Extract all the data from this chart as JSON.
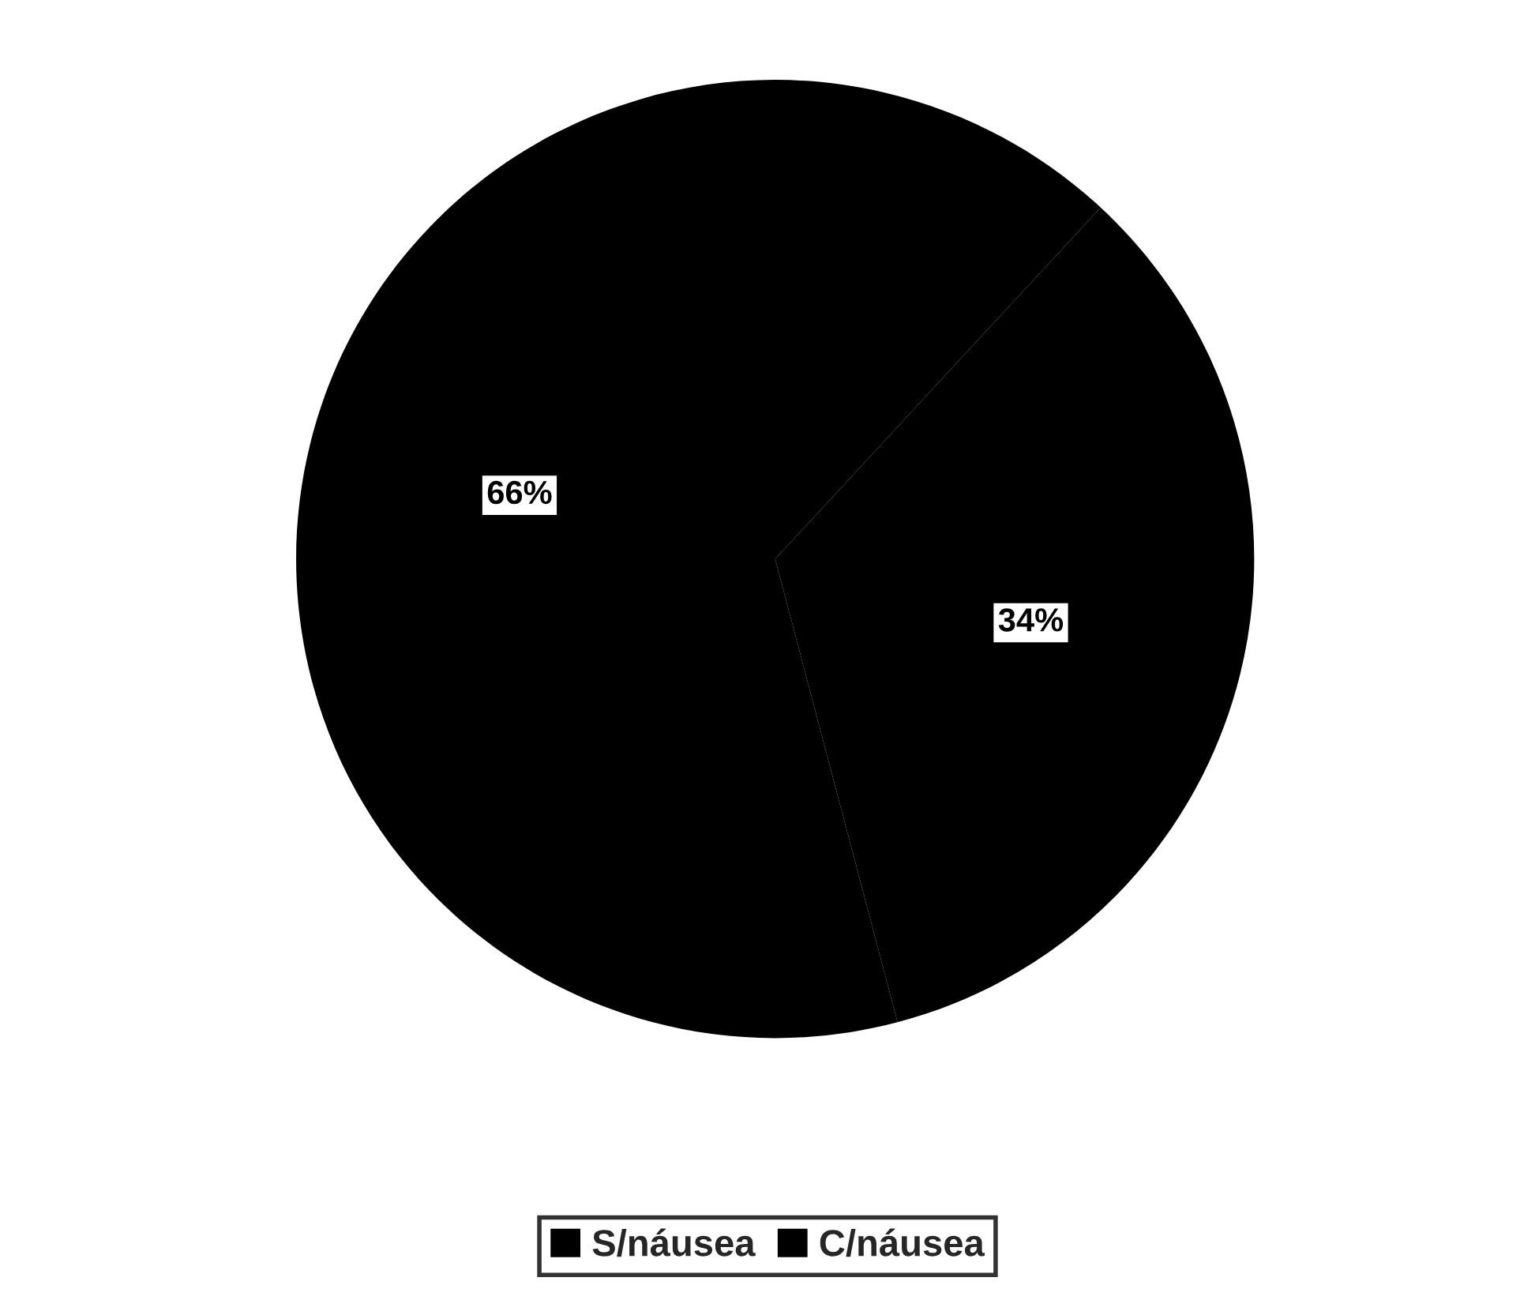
{
  "chart_data": {
    "type": "pie",
    "categories": [
      "S/náusea",
      "C/náusea"
    ],
    "values": [
      66,
      34
    ],
    "colors": [
      "#000000",
      "#000000"
    ],
    "value_labels": [
      "66%",
      "34%"
    ],
    "legend": "bottom"
  }
}
